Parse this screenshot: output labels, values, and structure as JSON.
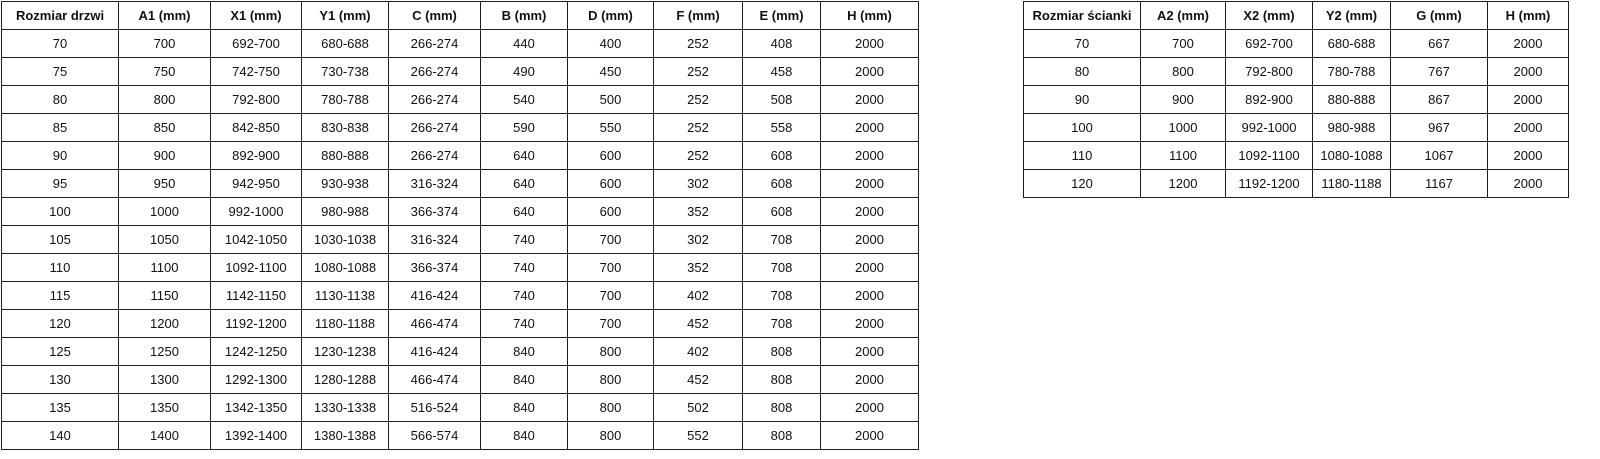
{
  "colors": {
    "background": "#ffffff",
    "border": "#1f1f1f",
    "text": "#111111"
  },
  "tables": [
    {
      "title": "door-sizes",
      "headers": [
        "Rozmiar drzwi",
        "A1 (mm)",
        "X1 (mm)",
        "Y1 (mm)",
        "C (mm)",
        "B (mm)",
        "D (mm)",
        "F (mm)",
        "E (mm)",
        "H (mm)"
      ],
      "rows": [
        [
          "70",
          "700",
          "692-700",
          "680-688",
          "266-274",
          "440",
          "400",
          "252",
          "408",
          "2000"
        ],
        [
          "75",
          "750",
          "742-750",
          "730-738",
          "266-274",
          "490",
          "450",
          "252",
          "458",
          "2000"
        ],
        [
          "80",
          "800",
          "792-800",
          "780-788",
          "266-274",
          "540",
          "500",
          "252",
          "508",
          "2000"
        ],
        [
          "85",
          "850",
          "842-850",
          "830-838",
          "266-274",
          "590",
          "550",
          "252",
          "558",
          "2000"
        ],
        [
          "90",
          "900",
          "892-900",
          "880-888",
          "266-274",
          "640",
          "600",
          "252",
          "608",
          "2000"
        ],
        [
          "95",
          "950",
          "942-950",
          "930-938",
          "316-324",
          "640",
          "600",
          "302",
          "608",
          "2000"
        ],
        [
          "100",
          "1000",
          "992-1000",
          "980-988",
          "366-374",
          "640",
          "600",
          "352",
          "608",
          "2000"
        ],
        [
          "105",
          "1050",
          "1042-1050",
          "1030-1038",
          "316-324",
          "740",
          "700",
          "302",
          "708",
          "2000"
        ],
        [
          "110",
          "1100",
          "1092-1100",
          "1080-1088",
          "366-374",
          "740",
          "700",
          "352",
          "708",
          "2000"
        ],
        [
          "115",
          "1150",
          "1142-1150",
          "1130-1138",
          "416-424",
          "740",
          "700",
          "402",
          "708",
          "2000"
        ],
        [
          "120",
          "1200",
          "1192-1200",
          "1180-1188",
          "466-474",
          "740",
          "700",
          "452",
          "708",
          "2000"
        ],
        [
          "125",
          "1250",
          "1242-1250",
          "1230-1238",
          "416-424",
          "840",
          "800",
          "402",
          "808",
          "2000"
        ],
        [
          "130",
          "1300",
          "1292-1300",
          "1280-1288",
          "466-474",
          "840",
          "800",
          "452",
          "808",
          "2000"
        ],
        [
          "135",
          "1350",
          "1342-1350",
          "1330-1338",
          "516-524",
          "840",
          "800",
          "502",
          "808",
          "2000"
        ],
        [
          "140",
          "1400",
          "1392-1400",
          "1380-1388",
          "566-574",
          "840",
          "800",
          "552",
          "808",
          "2000"
        ]
      ]
    },
    {
      "title": "wall-panel-sizes",
      "headers": [
        "Rozmiar ścianki",
        "A2 (mm)",
        "X2 (mm)",
        "Y2 (mm)",
        "G (mm)",
        "H (mm)"
      ],
      "rows": [
        [
          "70",
          "700",
          "692-700",
          "680-688",
          "667",
          "2000"
        ],
        [
          "80",
          "800",
          "792-800",
          "780-788",
          "767",
          "2000"
        ],
        [
          "90",
          "900",
          "892-900",
          "880-888",
          "867",
          "2000"
        ],
        [
          "100",
          "1000",
          "992-1000",
          "980-988",
          "967",
          "2000"
        ],
        [
          "110",
          "1100",
          "1092-1100",
          "1080-1088",
          "1067",
          "2000"
        ],
        [
          "120",
          "1200",
          "1192-1200",
          "1180-1188",
          "1167",
          "2000"
        ]
      ]
    }
  ]
}
